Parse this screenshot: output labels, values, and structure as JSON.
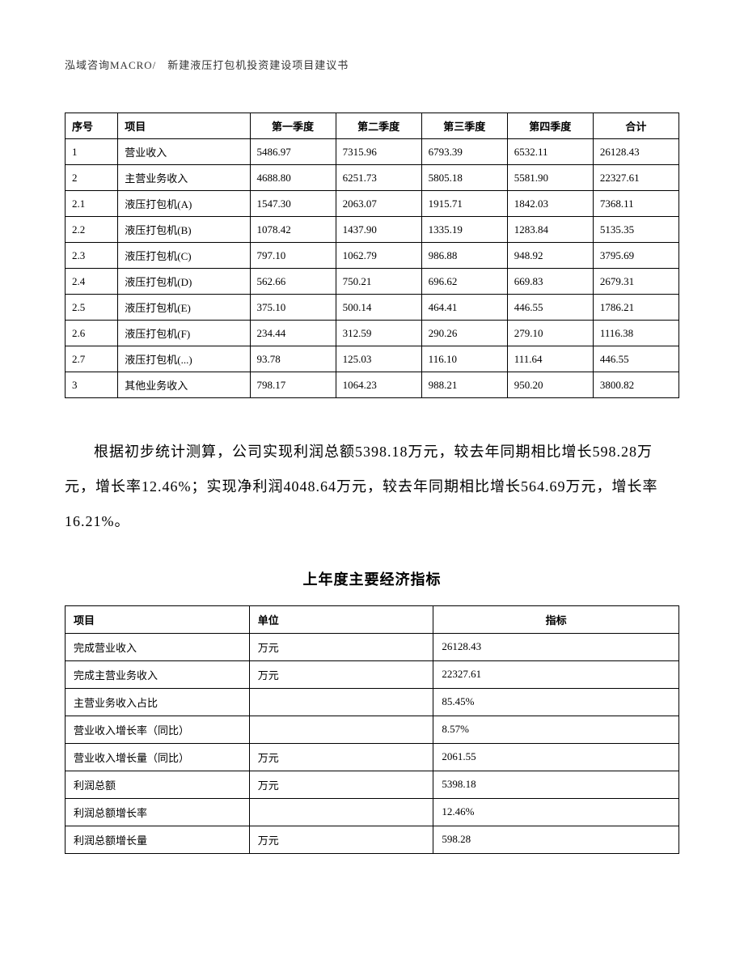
{
  "header": "泓域咨询MACRO/　新建液压打包机投资建设项目建议书",
  "table1": {
    "headers": {
      "seq": "序号",
      "item": "项目",
      "q1": "第一季度",
      "q2": "第二季度",
      "q3": "第三季度",
      "q4": "第四季度",
      "total": "合计"
    },
    "rows": [
      {
        "seq": "1",
        "item": "营业收入",
        "q1": "5486.97",
        "q2": "7315.96",
        "q3": "6793.39",
        "q4": "6532.11",
        "total": "26128.43"
      },
      {
        "seq": "2",
        "item": "主营业务收入",
        "q1": "4688.80",
        "q2": "6251.73",
        "q3": "5805.18",
        "q4": "5581.90",
        "total": "22327.61"
      },
      {
        "seq": "2.1",
        "item": "液压打包机(A)",
        "q1": "1547.30",
        "q2": "2063.07",
        "q3": "1915.71",
        "q4": "1842.03",
        "total": "7368.11"
      },
      {
        "seq": "2.2",
        "item": "液压打包机(B)",
        "q1": "1078.42",
        "q2": "1437.90",
        "q3": "1335.19",
        "q4": "1283.84",
        "total": "5135.35"
      },
      {
        "seq": "2.3",
        "item": "液压打包机(C)",
        "q1": "797.10",
        "q2": "1062.79",
        "q3": "986.88",
        "q4": "948.92",
        "total": "3795.69"
      },
      {
        "seq": "2.4",
        "item": "液压打包机(D)",
        "q1": "562.66",
        "q2": "750.21",
        "q3": "696.62",
        "q4": "669.83",
        "total": "2679.31"
      },
      {
        "seq": "2.5",
        "item": "液压打包机(E)",
        "q1": "375.10",
        "q2": "500.14",
        "q3": "464.41",
        "q4": "446.55",
        "total": "1786.21"
      },
      {
        "seq": "2.6",
        "item": "液压打包机(F)",
        "q1": "234.44",
        "q2": "312.59",
        "q3": "290.26",
        "q4": "279.10",
        "total": "1116.38"
      },
      {
        "seq": "2.7",
        "item": "液压打包机(...)",
        "q1": "93.78",
        "q2": "125.03",
        "q3": "116.10",
        "q4": "111.64",
        "total": "446.55"
      },
      {
        "seq": "3",
        "item": "其他业务收入",
        "q1": "798.17",
        "q2": "1064.23",
        "q3": "988.21",
        "q4": "950.20",
        "total": "3800.82"
      }
    ]
  },
  "paragraph": "根据初步统计测算，公司实现利润总额5398.18万元，较去年同期相比增长598.28万元，增长率12.46%；实现净利润4048.64万元，较去年同期相比增长564.69万元，增长率16.21%。",
  "section_title": "上年度主要经济指标",
  "table2": {
    "headers": {
      "name": "项目",
      "unit": "单位",
      "value": "指标"
    },
    "rows": [
      {
        "name": "完成营业收入",
        "unit": "万元",
        "value": "26128.43"
      },
      {
        "name": "完成主营业务收入",
        "unit": "万元",
        "value": "22327.61"
      },
      {
        "name": "主营业务收入占比",
        "unit": "",
        "value": "85.45%"
      },
      {
        "name": "营业收入增长率（同比）",
        "unit": "",
        "value": "8.57%"
      },
      {
        "name": "营业收入增长量（同比）",
        "unit": "万元",
        "value": "2061.55"
      },
      {
        "name": "利润总额",
        "unit": "万元",
        "value": "5398.18"
      },
      {
        "name": "利润总额增长率",
        "unit": "",
        "value": "12.46%"
      },
      {
        "name": "利润总额增长量",
        "unit": "万元",
        "value": "598.28"
      }
    ]
  }
}
